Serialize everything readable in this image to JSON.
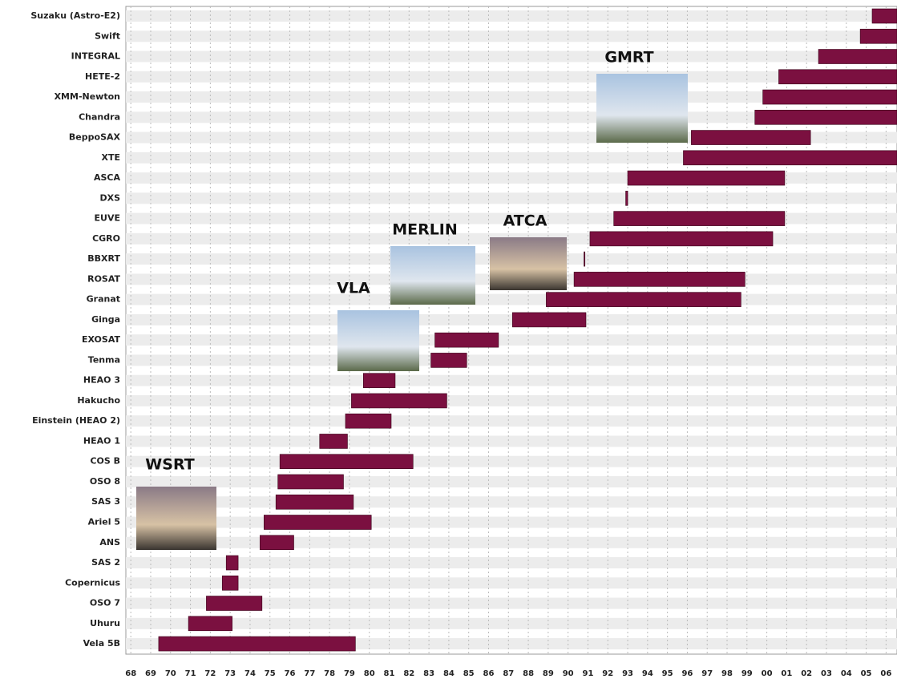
{
  "chart_data": {
    "type": "gantt",
    "categories": [
      "Suzaku (Astro-E2)",
      "Swift",
      "INTEGRAL",
      "HETE-2",
      "XMM-Newton",
      "Chandra",
      "BeppoSAX",
      "XTE",
      "ASCA",
      "DXS",
      "EUVE",
      "CGRO",
      "BBXRT",
      "ROSAT",
      "Granat",
      "Ginga",
      "EXOSAT",
      "Tenma",
      "HEAO 3",
      "Hakucho",
      "Einstein (HEAO 2)",
      "HEAO 1",
      "COS B",
      "OSO 8",
      "SAS 3",
      "Ariel 5",
      "ANS",
      "SAS 2",
      "Copernicus",
      "OSO 7",
      "Uhuru",
      "Vela 5B"
    ],
    "start": [
      2005.3,
      2004.7,
      2002.6,
      2000.6,
      1999.8,
      1999.4,
      1996.2,
      1995.8,
      1993.0,
      1992.9,
      1992.3,
      1991.1,
      1990.8,
      1990.3,
      1988.9,
      1987.2,
      1983.3,
      1983.1,
      1979.7,
      1979.1,
      1978.8,
      1977.5,
      1975.5,
      1975.4,
      1975.3,
      1974.7,
      1974.5,
      1972.8,
      1972.6,
      1971.8,
      1970.9,
      1969.4
    ],
    "end": [
      2006.55,
      2006.55,
      2006.55,
      2006.55,
      2006.55,
      2006.55,
      2002.2,
      2006.55,
      2000.9,
      1993.0,
      2000.9,
      2000.3,
      1990.85,
      1998.9,
      1998.7,
      1990.9,
      1986.5,
      1984.9,
      1981.3,
      1983.9,
      1981.1,
      1978.9,
      1982.2,
      1978.7,
      1979.2,
      1980.1,
      1976.2,
      1973.4,
      1973.4,
      1974.6,
      1973.1,
      1979.3
    ],
    "color": "#7b1040",
    "xlim": [
      1967.75,
      2006.55
    ],
    "xticks": [
      {
        "value": 1968,
        "label": "68"
      },
      {
        "value": 1969,
        "label": "69"
      },
      {
        "value": 1970,
        "label": "70"
      },
      {
        "value": 1971,
        "label": "71"
      },
      {
        "value": 1972,
        "label": "72"
      },
      {
        "value": 1973,
        "label": "73"
      },
      {
        "value": 1974,
        "label": "74"
      },
      {
        "value": 1975,
        "label": "75"
      },
      {
        "value": 1976,
        "label": "76"
      },
      {
        "value": 1977,
        "label": "77"
      },
      {
        "value": 1978,
        "label": "78"
      },
      {
        "value": 1979,
        "label": "79"
      },
      {
        "value": 1980,
        "label": "80"
      },
      {
        "value": 1981,
        "label": "81"
      },
      {
        "value": 1982,
        "label": "82"
      },
      {
        "value": 1983,
        "label": "83"
      },
      {
        "value": 1984,
        "label": "84"
      },
      {
        "value": 1985,
        "label": "85"
      },
      {
        "value": 1986,
        "label": "86"
      },
      {
        "value": 1987,
        "label": "87"
      },
      {
        "value": 1988,
        "label": "88"
      },
      {
        "value": 1989,
        "label": "89"
      },
      {
        "value": 1990,
        "label": "90"
      },
      {
        "value": 1991,
        "label": "91"
      },
      {
        "value": 1992,
        "label": "92"
      },
      {
        "value": 1993,
        "label": "93"
      },
      {
        "value": 1994,
        "label": "94"
      },
      {
        "value": 1995,
        "label": "95"
      },
      {
        "value": 1996,
        "label": "96"
      },
      {
        "value": 1997,
        "label": "97"
      },
      {
        "value": 1998,
        "label": "98"
      },
      {
        "value": 1999,
        "label": "99"
      },
      {
        "value": 2000,
        "label": "00"
      },
      {
        "value": 2001,
        "label": "01"
      },
      {
        "value": 2002,
        "label": "02"
      },
      {
        "value": 2003,
        "label": "03"
      },
      {
        "value": 2004,
        "label": "04"
      },
      {
        "value": 2005,
        "label": "05"
      },
      {
        "value": 2006,
        "label": "06"
      }
    ],
    "grid": true,
    "annotations": [
      "GMRT",
      "MERLIN",
      "ATCA",
      "VLA",
      "WSRT"
    ]
  }
}
